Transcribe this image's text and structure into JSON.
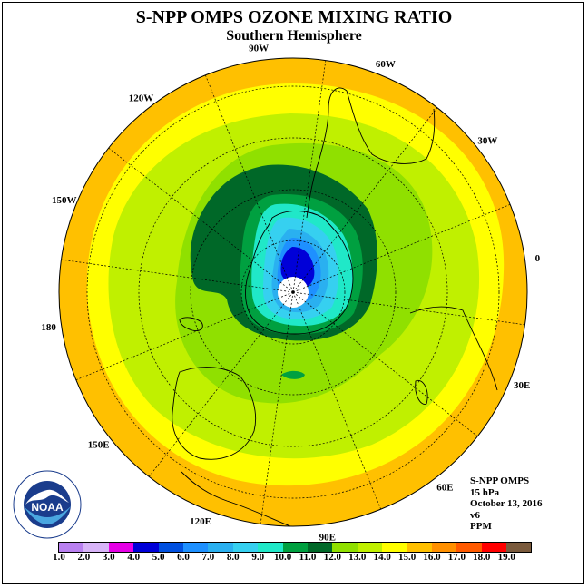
{
  "title": "S-NPP OMPS OZONE MIXING RATIO",
  "subtitle": "Southern Hemisphere",
  "info": {
    "instrument": "S-NPP OMPS",
    "pressure": "15 hPa",
    "date": "October 13, 2016",
    "version": "v6",
    "units": "PPM"
  },
  "logo": {
    "text": "NOAA",
    "ring_text": "NATIONAL OCEANIC AND ATMOSPHERIC ADMINISTRATION · U.S. DEPARTMENT OF COMMERCE"
  },
  "longitude_labels": [
    {
      "text": "0",
      "lon": 0
    },
    {
      "text": "30E",
      "lon": 30
    },
    {
      "text": "60E",
      "lon": 60
    },
    {
      "text": "90E",
      "lon": 90
    },
    {
      "text": "120E",
      "lon": 120
    },
    {
      "text": "150E",
      "lon": 150
    },
    {
      "text": "180",
      "lon": 180
    },
    {
      "text": "150W",
      "lon": -150
    },
    {
      "text": "120W",
      "lon": -120
    },
    {
      "text": "90W",
      "lon": -90
    },
    {
      "text": "60W",
      "lon": -60
    },
    {
      "text": "30W",
      "lon": -30
    }
  ],
  "colorbar": {
    "labels": [
      "1.0",
      "2.0",
      "3.0",
      "4.0",
      "5.0",
      "6.0",
      "7.0",
      "8.0",
      "9.0",
      "10.0",
      "11.0",
      "12.0",
      "13.0",
      "14.0",
      "15.0",
      "16.0",
      "17.0",
      "18.0",
      "19.0"
    ],
    "colors": [
      "#b980f0",
      "#d8b4f8",
      "#e600e6",
      "#0000d8",
      "#0050e0",
      "#1e90ff",
      "#2ab0f0",
      "#36d0f0",
      "#20e8c8",
      "#00a040",
      "#006828",
      "#90e000",
      "#c0f000",
      "#ffff00",
      "#ffc000",
      "#ff9000",
      "#ff5a00",
      "#ff0000",
      "#7a5a3c"
    ]
  },
  "map_colors": {
    "c14_15": "#ffc000",
    "c13_14": "#ffff00",
    "c12_13": "#c0f000",
    "c11_12": "#90e000",
    "c10_11": "#006828",
    "c9_10": "#00a040",
    "c8_9": "#20e8c8",
    "c7_8": "#36d0f0",
    "c6_7": "#2ab0f0",
    "c5_6": "#1e90ff",
    "c4_5": "#0000d8"
  }
}
